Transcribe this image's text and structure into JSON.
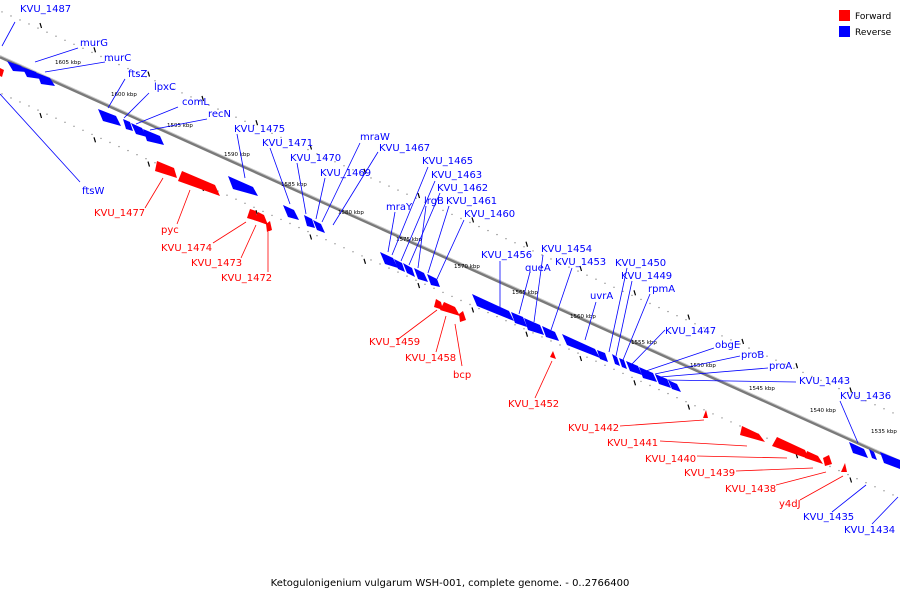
{
  "legend": [
    {
      "label": "Forward",
      "color": "#ff0000"
    },
    {
      "label": "Reverse",
      "color": "#0000ff"
    }
  ],
  "caption": "Ketogulonigenium vulgarum WSH-001, complete genome. - 0..2766400",
  "colors": {
    "forward": "#ff0000",
    "reverse": "#0000ff",
    "backbone": "#808080"
  },
  "scale_labels": [
    "1605 kbp",
    "1600 kbp",
    "1595 kbp",
    "1590 kbp",
    "1585 kbp",
    "1580 kbp",
    "1575 kbp",
    "1570 kbp",
    "1565 kbp",
    "1560 kbp",
    "1555 kbp",
    "1550 kbp",
    "1545 kbp",
    "1540 kbp",
    "1535 kbp"
  ],
  "reverse_labels": [
    "KVU_1487",
    "murG",
    "murC",
    "ftsZ",
    "lpxC",
    "comL",
    "recN",
    "ftsW",
    "KVU_1475",
    "KVU_1471",
    "KVU_1470",
    "KVU_1469",
    "mraW",
    "KVU_1467",
    "KVU_1465",
    "KVU_1463",
    "KVU_1462",
    "mraY",
    "lrgB",
    "KVU_1461",
    "KVU_1460",
    "KVU_1456",
    "KVU_1454",
    "queA",
    "KVU_1453",
    "uvrA",
    "KVU_1450",
    "KVU_1449",
    "rpmA",
    "KVU_1447",
    "obgE",
    "proB",
    "proA",
    "KVU_1443",
    "KVU_1436",
    "KVU_1435",
    "KVU_1434"
  ],
  "forward_labels": [
    "KVU_1477",
    "pyc",
    "KVU_1474",
    "KVU_1473",
    "KVU_1472",
    "KVU_1459",
    "KVU_1458",
    "bcp",
    "KVU_1452",
    "KVU_1442",
    "KVU_1441",
    "KVU_1440",
    "KVU_1439",
    "KVU_1438",
    "y4dJ"
  ]
}
